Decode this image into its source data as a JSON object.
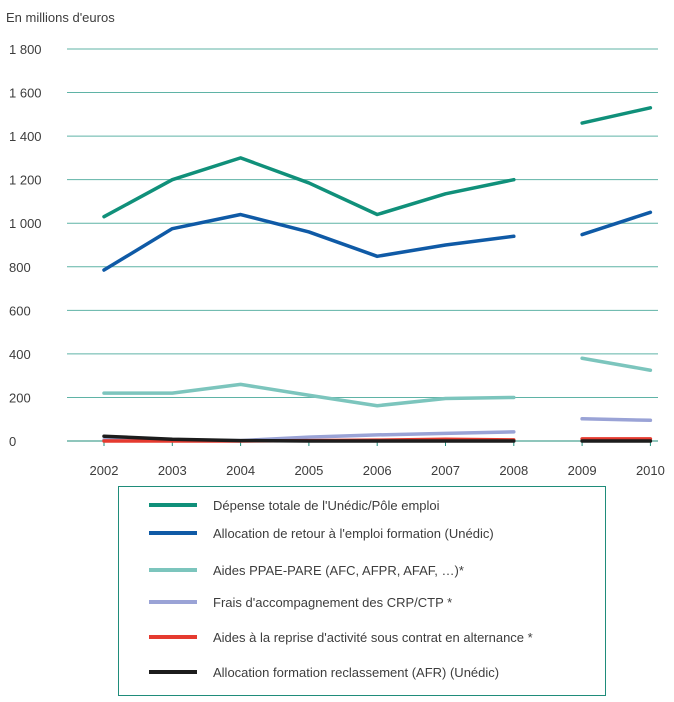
{
  "chart_data": {
    "type": "line",
    "ylabel": "En millions d'euros",
    "xlabel": "",
    "ylim": [
      0,
      1800
    ],
    "yticks": [
      0,
      200,
      400,
      600,
      800,
      1000,
      1200,
      1400,
      1600,
      1800
    ],
    "ytick_labels": [
      "0",
      "200",
      "400",
      "600",
      "800",
      "1 000",
      "1 200",
      "1 400",
      "1 600",
      "1 800"
    ],
    "categories": [
      "2002",
      "2003",
      "2004",
      "2005",
      "2006",
      "2007",
      "2008",
      "2009",
      "2010"
    ],
    "grid": true,
    "legend_position": "bottom",
    "series": [
      {
        "name": "Dépense totale de l'Unédic/Pôle emploi",
        "color": "#10907a",
        "values": [
          1030,
          1200,
          1300,
          1185,
          1040,
          1135,
          1200,
          1460,
          1530
        ]
      },
      {
        "name": "Allocation de retour à  l'emploi formation (Unédic)",
        "color": "#0f5aa6",
        "values": [
          785,
          975,
          1040,
          960,
          848,
          900,
          940,
          948,
          1050
        ]
      },
      {
        "name": "Aides PPAE-PARE (AFC, AFPR, AFAF, …)*",
        "color": "#7cc5bd",
        "values": [
          220,
          220,
          260,
          210,
          162,
          195,
          200,
          380,
          325
        ]
      },
      {
        "name": "Frais d'accompagnement  des CRP/CTP *",
        "color": "#9aa3d6",
        "values": [
          5,
          3,
          2,
          18,
          28,
          35,
          42,
          102,
          95
        ]
      },
      {
        "name": "Aides à la reprise  d'activité sous contrat  en alternance *",
        "color": "#e53a2f",
        "values": [
          0,
          0,
          0,
          2,
          4,
          8,
          5,
          10,
          10
        ]
      },
      {
        "name": "Allocation formation  reclassement (AFR) (Unédic)",
        "color": "#1c1c1c",
        "values": [
          22,
          8,
          2,
          0,
          0,
          0,
          0,
          0,
          0
        ]
      }
    ],
    "gap_between": [
      "2008",
      "2009"
    ]
  }
}
